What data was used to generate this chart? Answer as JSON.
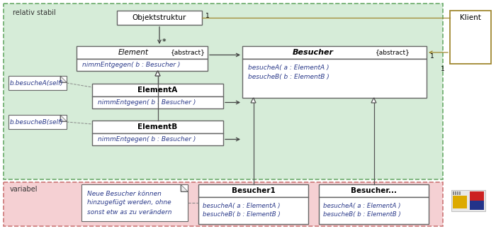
{
  "green_bg": "#d4edda",
  "pink_bg": "#f8d7da",
  "white": "#ffffff",
  "text_blue": "#2b3a8a",
  "text_dark": "#222222",
  "border_gray": "#666666",
  "border_green": "#5a9a5a",
  "border_pink": "#cc7777",
  "klient_border": "#a08830",
  "label_relativ": "relativ stabil",
  "label_variabel": "variabel",
  "label_klient": "Klient",
  "obj_title": "Objektstruktur",
  "elem_title": "Element",
  "elem_abstract": "{abstract}",
  "elem_method": "nimmEntgegen( b : Besucher )",
  "besucher_title": "Besucher",
  "besucher_abstract": "{abstract}",
  "besucher_m1": "besucheA( a : ElementA )",
  "besucher_m2": "besucheB( b : ElementB )",
  "elemA_title": "ElementA",
  "elemA_method": "nimmEntgegen( b : Besucher )",
  "elemB_title": "ElementB",
  "elemB_method": "nimmEntgegen( b : Besucher )",
  "note1": "b.besucheA(self)",
  "note2": "b.besucheB(self)",
  "note_bottom": "Neue Besucher können\nhinzugefügt werden, ohne\nsonst etw as zu verändern",
  "b1_title": "Besucher1",
  "b1_m1": "besucheA( a : ElementA )",
  "b1_m2": "besucheB( b : ElementB )",
  "bn_title": "Besucher...",
  "bn_m1": "besucheA( a : ElementA )",
  "bn_m2": "besucheB( b : ElementB )"
}
